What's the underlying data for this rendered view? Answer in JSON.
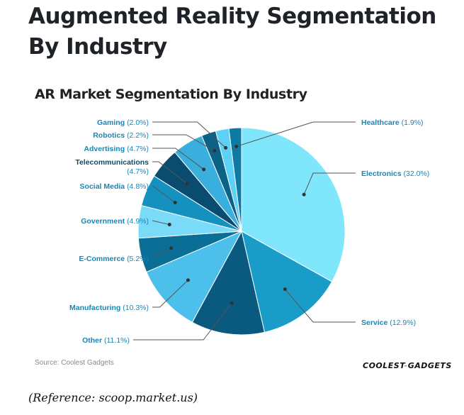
{
  "page": {
    "title": "Augmented Reality Segmentation By Industry",
    "reference": "(Reference: scoop.market.us)"
  },
  "chart_data": {
    "type": "pie",
    "title": "AR Market Segmentation By Industry",
    "source": "Source: Coolest Gadgets",
    "logo": "COOLEST-GADGETS",
    "start": "12 o'clock, clockwise",
    "slices": [
      {
        "label": "Electronics",
        "value": 32.0,
        "color": "#7fe6fb"
      },
      {
        "label": "Service",
        "value": 12.9,
        "color": "#1a9cc8"
      },
      {
        "label": "Other",
        "value": 11.1,
        "color": "#0a5a80"
      },
      {
        "label": "Manufacturing",
        "value": 10.3,
        "color": "#4cc0ea"
      },
      {
        "label": "E-Commerce",
        "value": 5.2,
        "color": "#0b6e96"
      },
      {
        "label": "Government",
        "value": 4.9,
        "color": "#79dbf7"
      },
      {
        "label": "Social Media",
        "value": 4.8,
        "color": "#1491bf"
      },
      {
        "label": "Telecommunications",
        "value": 4.7,
        "color": "#0a4c70"
      },
      {
        "label": "Advertising",
        "value": 4.7,
        "color": "#3aaedc"
      },
      {
        "label": "Robotics",
        "value": 2.2,
        "color": "#0b6186"
      },
      {
        "label": "Gaming",
        "value": 2.0,
        "color": "#5dd0f5"
      },
      {
        "label": "Healthcare",
        "value": 1.9,
        "color": "#0e7aa3"
      }
    ]
  }
}
